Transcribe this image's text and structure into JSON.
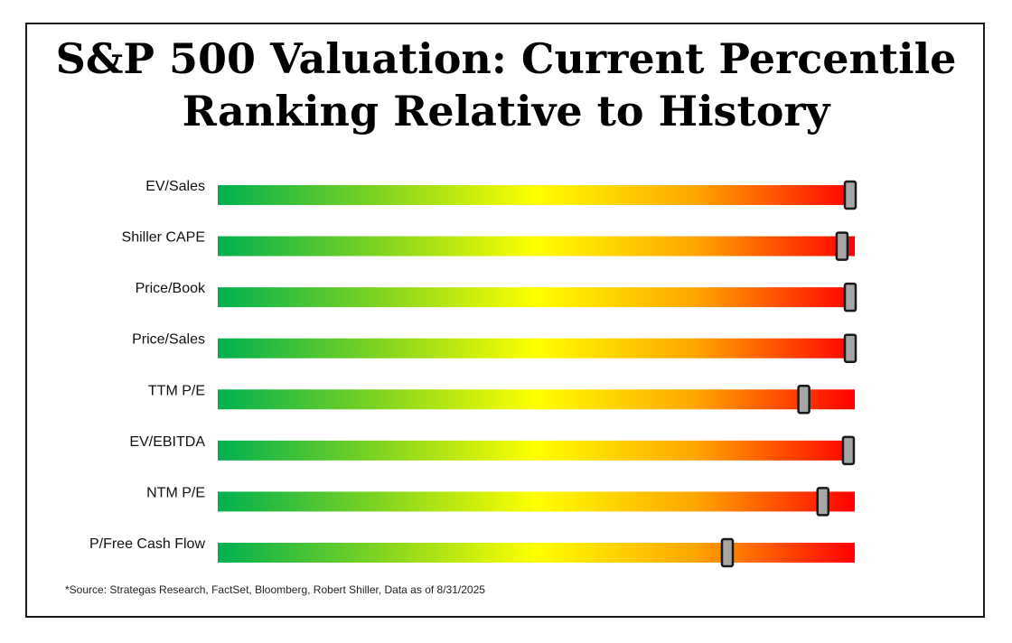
{
  "title_line1": "S&P 500 Valuation: Current Percentile",
  "title_line2": "Ranking Relative to History",
  "source": "*Source: Strategas Research, FactSet, Bloomberg, Robert Shiller, Data as of 8/31/2025",
  "colors": {
    "low": "#00b050",
    "mid_low": "#7ed321",
    "mid": "#ffff00",
    "mid_high": "#ffa500",
    "high": "#ff0000",
    "marker_fill": "#a6a6a6",
    "marker_stroke": "#1a1a1a"
  },
  "chart_data": {
    "type": "bar",
    "xlim": [
      0,
      100
    ],
    "grid": false,
    "categories": [
      "EV/Sales",
      "Shiller CAPE",
      "Price/Book",
      "Price/Sales",
      "TTM P/E",
      "EV/EBITDA",
      "NTM P/E",
      "P/Free Cash Flow"
    ],
    "values": [
      100,
      98,
      100,
      100,
      92,
      99,
      95,
      80
    ]
  }
}
